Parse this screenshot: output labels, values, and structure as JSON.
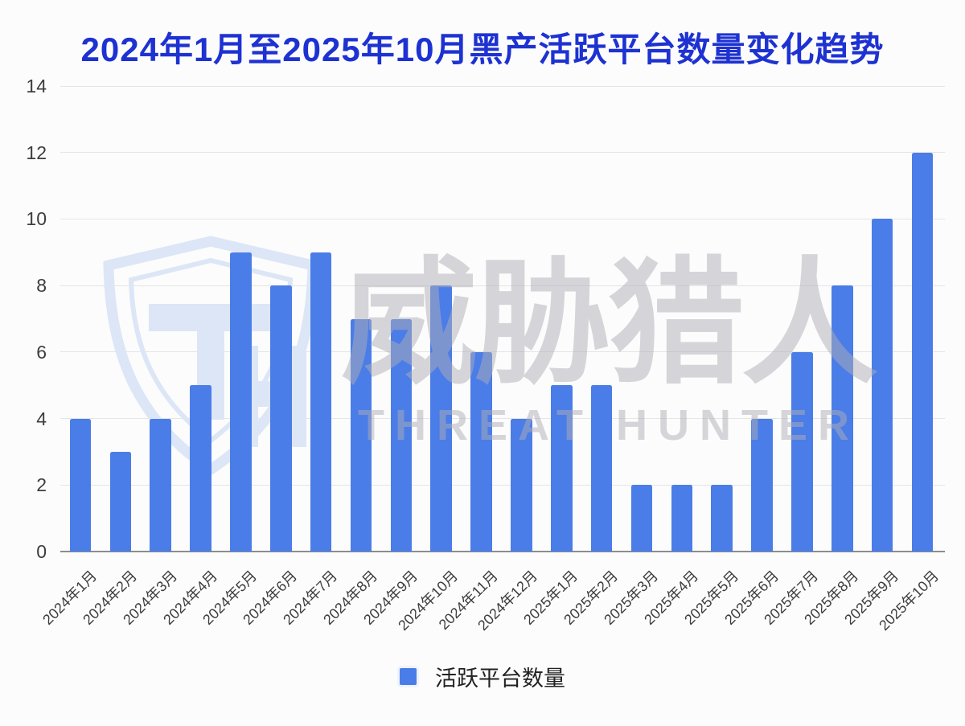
{
  "chart_data": {
    "type": "bar",
    "title": "2024年1月至2025年10月黑产活跃平台数量变化趋势",
    "categories": [
      "2024年1月",
      "2024年2月",
      "2024年3月",
      "2024年4月",
      "2024年5月",
      "2024年6月",
      "2024年7月",
      "2024年8月",
      "2024年9月",
      "2024年10月",
      "2024年11月",
      "2024年12月",
      "2025年1月",
      "2025年2月",
      "2025年3月",
      "2025年4月",
      "2025年5月",
      "2025年6月",
      "2025年7月",
      "2025年8月",
      "2025年9月",
      "2025年10月"
    ],
    "series": [
      {
        "name": "活跃平台数量",
        "values": [
          4,
          3,
          4,
          5,
          9,
          8,
          9,
          7,
          7,
          8,
          6,
          4,
          5,
          5,
          2,
          2,
          2,
          4,
          6,
          8,
          10,
          12
        ]
      }
    ],
    "xlabel": "",
    "ylabel": "",
    "ylim": [
      0,
      14
    ],
    "yticks": [
      0,
      2,
      4,
      6,
      8,
      10,
      12,
      14
    ],
    "grid": true,
    "legend_position": "bottom",
    "x_tick_rotation_deg": -45
  },
  "legend": {
    "label": "活跃平台数量"
  },
  "watermark": {
    "logo": "threat-hunter-shield-th-monogram",
    "text_cn": "威胁猎人",
    "text_en": "THREAT HUNTER"
  },
  "colors": {
    "bar": "#4b7de8",
    "title": "#1e32d2",
    "gridline": "#e5e5e5",
    "axis_line": "#8d8d8d",
    "axis_text": "#3d3d3d",
    "legend_text": "#222222",
    "watermark_gray": "rgba(174,174,182,0.5)",
    "watermark_blue": "#dce6f6"
  }
}
